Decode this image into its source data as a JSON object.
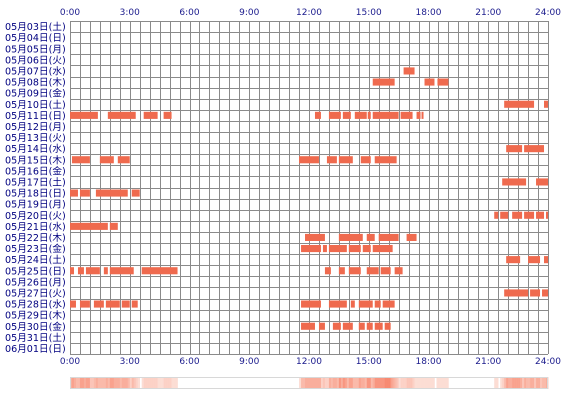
{
  "chart_data": {
    "type": "heatmap",
    "x_unit": "hours",
    "xlim": [
      0,
      24
    ],
    "x_ticks": [
      {
        "value": 0,
        "label": "0:00"
      },
      {
        "value": 3,
        "label": "3:00"
      },
      {
        "value": 6,
        "label": "6:00"
      },
      {
        "value": 9,
        "label": "9:00"
      },
      {
        "value": 12,
        "label": "12:00"
      },
      {
        "value": 15,
        "label": "15:00"
      },
      {
        "value": 18,
        "label": "18:00"
      },
      {
        "value": 21,
        "label": "21:00"
      },
      {
        "value": 24,
        "label": "24:00"
      }
    ],
    "minor_tick_step": 0.5,
    "grid": true,
    "colors": {
      "activity": "#ef6a4e",
      "grid": "#8a8a8a",
      "axis_text": "#1a1a8c",
      "row_text": "#000080",
      "density_low": "#fde9e2",
      "density_high": "#f79a86"
    },
    "rows": [
      {
        "label": "05月03日(土)",
        "intervals": []
      },
      {
        "label": "05月04日(日)",
        "intervals": []
      },
      {
        "label": "05月05日(月)",
        "intervals": []
      },
      {
        "label": "05月06日(火)",
        "intervals": []
      },
      {
        "label": "05月07日(水)",
        "intervals": [
          [
            16.75,
            17.3
          ]
        ]
      },
      {
        "label": "05月08日(木)",
        "intervals": [
          [
            15.2,
            16.3
          ],
          [
            17.8,
            18.3
          ],
          [
            18.45,
            19.0
          ]
        ]
      },
      {
        "label": "05月09日(金)",
        "intervals": []
      },
      {
        "label": "05月10日(土)",
        "intervals": [
          [
            21.8,
            23.3
          ],
          [
            23.8,
            24.0
          ]
        ]
      },
      {
        "label": "05月11日(日)",
        "intervals": [
          [
            0.0,
            1.4
          ],
          [
            1.9,
            3.3
          ],
          [
            3.7,
            4.4
          ],
          [
            4.7,
            5.1
          ],
          [
            12.3,
            12.6
          ],
          [
            13.0,
            13.6
          ],
          [
            13.7,
            14.1
          ],
          [
            14.3,
            14.9
          ],
          [
            14.95,
            15.1
          ],
          [
            15.2,
            16.5
          ],
          [
            16.6,
            17.2
          ],
          [
            17.4,
            17.6
          ],
          [
            17.65,
            17.75
          ]
        ]
      },
      {
        "label": "05月12日(月)",
        "intervals": []
      },
      {
        "label": "05月13日(火)",
        "intervals": []
      },
      {
        "label": "05月14日(水)",
        "intervals": [
          [
            21.9,
            22.7
          ],
          [
            22.8,
            23.8
          ]
        ]
      },
      {
        "label": "05月15日(木)",
        "intervals": [
          [
            0.1,
            1.0
          ],
          [
            1.5,
            2.2
          ],
          [
            2.4,
            3.0
          ],
          [
            11.5,
            12.5
          ],
          [
            12.9,
            13.4
          ],
          [
            13.5,
            14.2
          ],
          [
            14.6,
            15.1
          ],
          [
            15.3,
            16.4
          ]
        ]
      },
      {
        "label": "05月16日(金)",
        "intervals": []
      },
      {
        "label": "05月17日(土)",
        "intervals": [
          [
            21.7,
            22.9
          ],
          [
            23.4,
            24.0
          ]
        ]
      },
      {
        "label": "05月18日(日)",
        "intervals": [
          [
            0.0,
            0.4
          ],
          [
            0.5,
            1.0
          ],
          [
            1.3,
            2.9
          ],
          [
            3.1,
            3.5
          ]
        ]
      },
      {
        "label": "05月19日(月)",
        "intervals": []
      },
      {
        "label": "05月20日(火)",
        "intervals": [
          [
            21.3,
            21.5
          ],
          [
            21.6,
            22.0
          ],
          [
            22.2,
            22.7
          ],
          [
            22.8,
            23.3
          ],
          [
            23.4,
            23.8
          ],
          [
            23.9,
            24.0
          ]
        ]
      },
      {
        "label": "05月21日(水)",
        "intervals": [
          [
            0.0,
            1.9
          ],
          [
            2.0,
            2.4
          ]
        ]
      },
      {
        "label": "05月22日(木)",
        "intervals": [
          [
            11.8,
            12.8
          ],
          [
            13.5,
            14.7
          ],
          [
            14.9,
            15.3
          ],
          [
            15.5,
            16.5
          ],
          [
            16.9,
            17.4
          ]
        ]
      },
      {
        "label": "05月23日(金)",
        "intervals": [
          [
            11.6,
            12.6
          ],
          [
            12.7,
            12.9
          ],
          [
            13.0,
            13.9
          ],
          [
            14.0,
            14.6
          ],
          [
            14.7,
            15.1
          ],
          [
            15.2,
            16.2
          ]
        ]
      },
      {
        "label": "05月24日(土)",
        "intervals": [
          [
            21.9,
            22.6
          ],
          [
            23.0,
            23.6
          ],
          [
            23.8,
            24.0
          ]
        ]
      },
      {
        "label": "05月25日(日)",
        "intervals": [
          [
            0.0,
            0.2
          ],
          [
            0.4,
            0.7
          ],
          [
            0.8,
            1.5
          ],
          [
            1.7,
            1.9
          ],
          [
            2.0,
            3.2
          ],
          [
            3.6,
            5.4
          ],
          [
            12.8,
            13.1
          ],
          [
            13.5,
            13.8
          ],
          [
            14.0,
            14.6
          ],
          [
            14.9,
            15.5
          ],
          [
            15.6,
            16.1
          ],
          [
            16.3,
            16.7
          ]
        ]
      },
      {
        "label": "05月26日(月)",
        "intervals": []
      },
      {
        "label": "05月27日(火)",
        "intervals": [
          [
            21.8,
            23.0
          ],
          [
            23.1,
            23.6
          ],
          [
            23.7,
            24.0
          ]
        ]
      },
      {
        "label": "05月28日(水)",
        "intervals": [
          [
            0.0,
            0.3
          ],
          [
            0.5,
            1.0
          ],
          [
            1.2,
            1.7
          ],
          [
            1.8,
            2.5
          ],
          [
            2.6,
            3.0
          ],
          [
            3.1,
            3.4
          ],
          [
            11.6,
            12.6
          ],
          [
            13.0,
            13.9
          ],
          [
            14.1,
            14.3
          ],
          [
            14.5,
            15.2
          ],
          [
            15.3,
            15.6
          ],
          [
            15.7,
            16.3
          ]
        ]
      },
      {
        "label": "05月29日(木)",
        "intervals": []
      },
      {
        "label": "05月30日(金)",
        "intervals": [
          [
            11.6,
            12.3
          ],
          [
            12.5,
            12.8
          ],
          [
            13.2,
            13.6
          ],
          [
            13.7,
            14.2
          ],
          [
            14.5,
            14.8
          ],
          [
            14.9,
            15.2
          ],
          [
            15.3,
            15.7
          ],
          [
            15.8,
            16.1
          ]
        ]
      },
      {
        "label": "05月31日(土)",
        "intervals": []
      },
      {
        "label": "06月01日(日)",
        "intervals": []
      }
    ]
  }
}
